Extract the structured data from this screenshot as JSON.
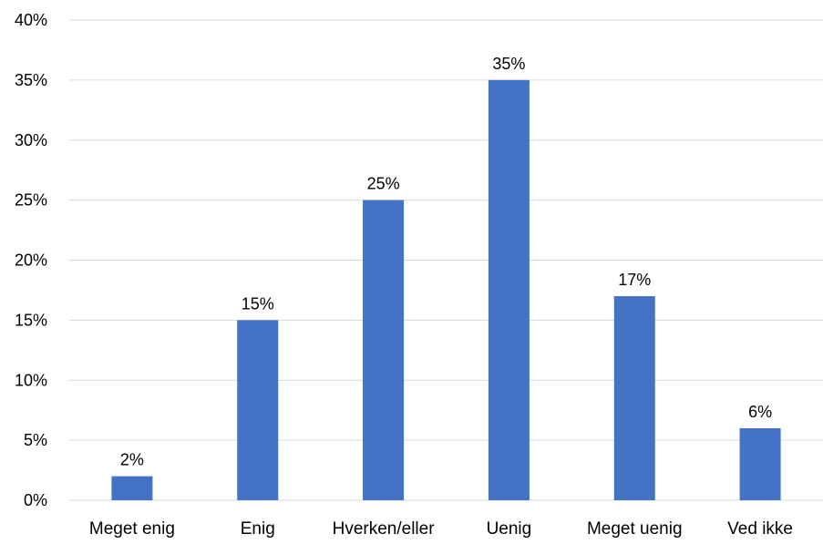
{
  "chart_data": {
    "type": "bar",
    "categories": [
      "Meget enig",
      "Enig",
      "Hverken/eller",
      "Uenig",
      "Meget uenig",
      "Ved ikke"
    ],
    "values": [
      2,
      15,
      25,
      35,
      17,
      6
    ],
    "value_labels": [
      "2%",
      "15%",
      "25%",
      "35%",
      "17%",
      "6%"
    ],
    "title": "",
    "xlabel": "",
    "ylabel": "",
    "ylim": [
      0,
      40
    ],
    "yticks": [
      0,
      5,
      10,
      15,
      20,
      25,
      30,
      35,
      40
    ],
    "ytick_labels": [
      "0%",
      "5%",
      "10%",
      "15%",
      "20%",
      "25%",
      "30%",
      "35%",
      "40%"
    ],
    "grid": true,
    "legend": "none",
    "colors": {
      "bar": "#4472C4",
      "grid": "#D9D9D9",
      "text": "#000000"
    }
  }
}
